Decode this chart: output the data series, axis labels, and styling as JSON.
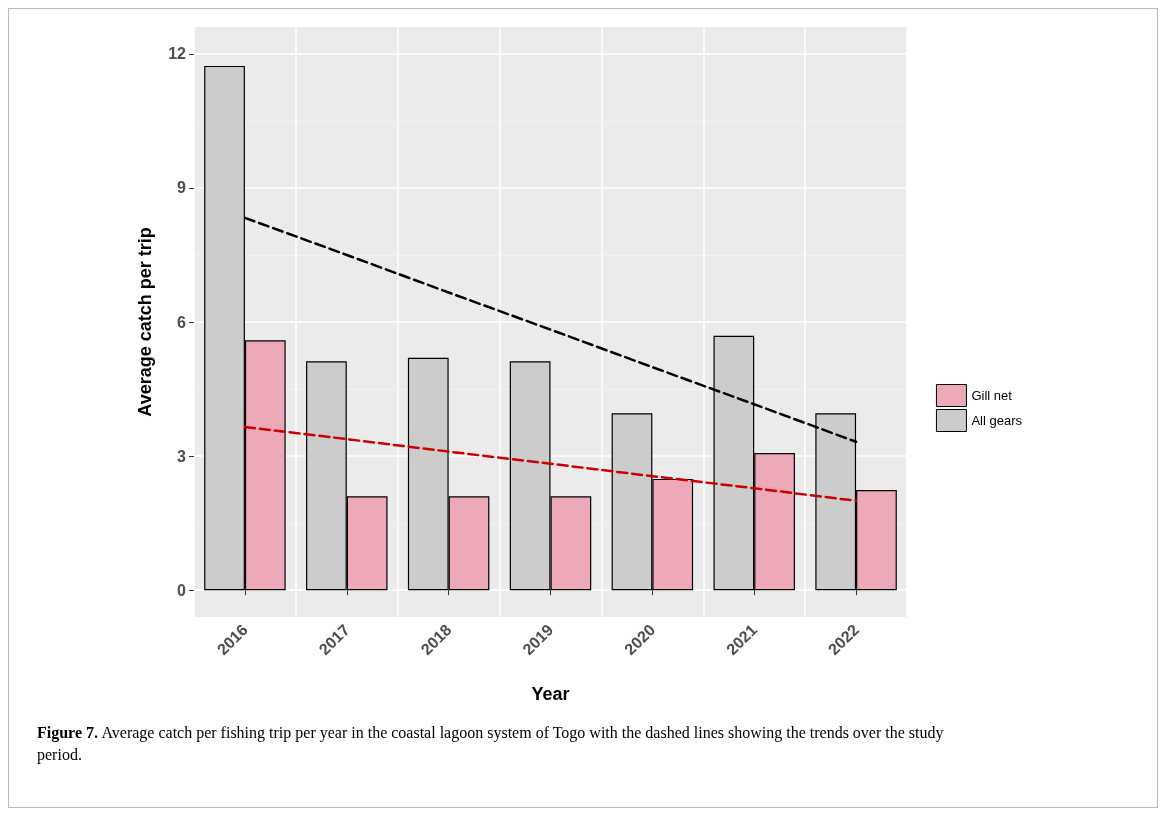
{
  "chart_data": {
    "type": "bar",
    "xlabel": "Year",
    "ylabel": "Average catch per trip",
    "categories": [
      "2016",
      "2017",
      "2018",
      "2019",
      "2020",
      "2021",
      "2022"
    ],
    "series": [
      {
        "name": "All gears",
        "color": "#cccccc",
        "values": [
          11.73,
          5.12,
          5.2,
          5.12,
          3.96,
          5.69,
          3.96
        ]
      },
      {
        "name": "Gill net",
        "color": "#eda9b8",
        "values": [
          5.59,
          2.1,
          2.1,
          2.1,
          2.49,
          3.07,
          2.24
        ]
      },
      {
        "type": "line",
        "color": "#000000",
        "values": [
          8.33,
          7.5,
          6.66,
          5.83,
          4.99,
          4.16,
          3.32
        ],
        "line_style": "dashed"
      },
      {
        "type": "line",
        "color": "#cc0000",
        "values": [
          3.65,
          3.38,
          3.1,
          2.83,
          2.55,
          2.28,
          2.0
        ],
        "line_style": "dashed"
      }
    ],
    "ylim": [
      -0.6,
      12.6
    ],
    "yticks": [
      0,
      3,
      6,
      9,
      12
    ],
    "grid": true,
    "legend": "right",
    "marker": "none",
    "annotations": [
      "Figure 7. Average catch per fishing trip per year in the coastal lagoon system of Togo with the dashed lines showing the trends over the study period."
    ]
  }
}
